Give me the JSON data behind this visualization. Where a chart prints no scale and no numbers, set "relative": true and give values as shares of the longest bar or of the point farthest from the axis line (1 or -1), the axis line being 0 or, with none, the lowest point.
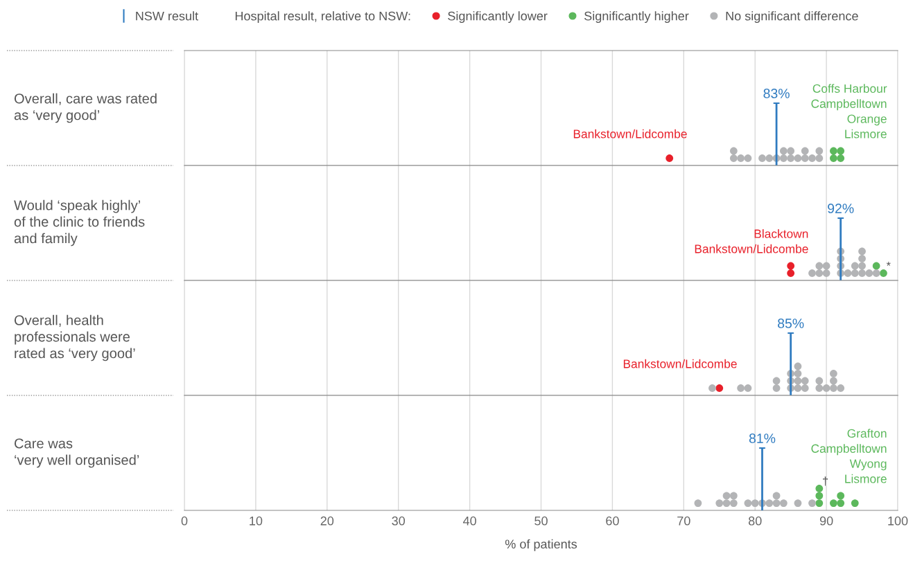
{
  "chart_data": [
    {
      "type": "scatter",
      "relative": true,
      "title": "Overall, care was rated\nas ‘very good’",
      "legend": "top",
      "legend_title": "Hospital result, relative to NSW:",
      "xlim": [
        0,
        100
      ],
      "xticks": [
        0,
        10,
        20,
        30,
        40,
        50,
        60,
        70,
        80,
        90,
        100
      ],
      "grid": "x",
      "tick_labels": false,
      "marker": "circle",
      "series": [
        {
          "name": "Significantly lower",
          "color": "#e8202a",
          "x": [
            68
          ],
          "values": [
            0.5
          ]
        },
        {
          "name": "Significantly higher",
          "color": "#5cb85c",
          "x": [
            91,
            91,
            92,
            92
          ],
          "values": [
            0.5,
            1,
            0.5,
            1
          ]
        },
        {
          "name": "No significant difference",
          "color": "#b3b4b6",
          "x": [
            77,
            77,
            78,
            79,
            81,
            82,
            83,
            84,
            84,
            85,
            85,
            86,
            87,
            87,
            88,
            89,
            89
          ],
          "values": [
            0.5,
            1,
            0.5,
            0.5,
            0.5,
            0.5,
            0.5,
            0.5,
            1,
            0.5,
            1,
            0.5,
            0.5,
            1,
            0.5,
            0.5,
            1
          ]
        }
      ],
      "ref_lines": [
        {
          "axis": "x",
          "value": 83,
          "label": "83%",
          "color": "#2f7bc0"
        }
      ],
      "annotations": [
        "NSW result",
        {
          "text": "Bankstown/Lidcombe",
          "x": 68,
          "y": 0.5
        },
        {
          "text": "Coffs Harbour\nCampbelltown\nOrange\nLismore",
          "x": 92,
          "y": 1
        }
      ]
    },
    {
      "type": "scatter",
      "relative": true,
      "title": "Would ‘speak highly’\nof the clinic to friends\nand family",
      "xlim": [
        0,
        100
      ],
      "xticks": [
        0,
        10,
        20,
        30,
        40,
        50,
        60,
        70,
        80,
        90,
        100
      ],
      "grid": "x",
      "tick_labels": false,
      "marker": "circle",
      "series": [
        {
          "color": "#e8202a",
          "x": [
            85,
            85
          ],
          "values": [
            0.25,
            0.5
          ]
        },
        {
          "color": "#5cb85c",
          "x": [
            97,
            98
          ],
          "values": [
            0.5,
            0.25
          ]
        },
        {
          "color": "#b3b4b6",
          "x": [
            88,
            89,
            89,
            90,
            90,
            92,
            92,
            92,
            92,
            93,
            94,
            94,
            95,
            95,
            95,
            95,
            96,
            97
          ],
          "values": [
            0.25,
            0.25,
            0.5,
            0.25,
            0.5,
            0.25,
            0.5,
            0.75,
            1,
            0.25,
            0.25,
            0.5,
            0.25,
            0.5,
            0.75,
            1,
            0.25,
            0.25
          ]
        }
      ],
      "ref_lines": [
        {
          "axis": "x",
          "value": 92,
          "label": "92%",
          "color": "#2f7bc0"
        }
      ],
      "annotations": [
        {
          "text": "Blacktown\nBankstown/Lidcombe",
          "x": 85,
          "y": 0.5
        },
        {
          "text": "*",
          "x": 98,
          "y": 0.25
        }
      ]
    },
    {
      "type": "scatter",
      "relative": true,
      "title": "Overall, health\nprofessionals were\nrated as ‘very good’",
      "xlim": [
        0,
        100
      ],
      "xticks": [
        0,
        10,
        20,
        30,
        40,
        50,
        60,
        70,
        80,
        90,
        100
      ],
      "grid": "x",
      "tick_labels": false,
      "marker": "circle",
      "series": [
        {
          "color": "#e8202a",
          "x": [
            75
          ],
          "values": [
            0.25
          ]
        },
        {
          "color": "#b3b4b6",
          "x": [
            74,
            78,
            79,
            83,
            83,
            85,
            85,
            85,
            86,
            86,
            86,
            86,
            87,
            87,
            89,
            89,
            90,
            91,
            91,
            91,
            92
          ],
          "values": [
            0.25,
            0.25,
            0.25,
            0.25,
            0.5,
            0.25,
            0.5,
            0.75,
            0.25,
            0.5,
            0.75,
            1,
            0.25,
            0.5,
            0.25,
            0.5,
            0.25,
            0.25,
            0.5,
            0.75,
            0.25
          ]
        }
      ],
      "ref_lines": [
        {
          "axis": "x",
          "value": 85,
          "label": "85%",
          "color": "#2f7bc0"
        }
      ],
      "annotations": [
        {
          "text": "Bankstown/Lidcombe",
          "x": 75,
          "y": 0.25
        }
      ]
    },
    {
      "type": "scatter",
      "relative": true,
      "title": "Care was\n‘very well organised’",
      "xlabel": "% of patients",
      "xlim": [
        0,
        100
      ],
      "xticks": [
        0,
        10,
        20,
        30,
        40,
        50,
        60,
        70,
        80,
        90,
        100
      ],
      "grid": "x",
      "tick_labels": "x",
      "marker": "circle",
      "series": [
        {
          "color": "#5cb85c",
          "x": [
            89,
            89,
            89,
            91,
            92,
            92,
            94
          ],
          "values": [
            0.33,
            0.67,
            1,
            0.33,
            0.33,
            0.67,
            0.33
          ]
        },
        {
          "color": "#b3b4b6",
          "x": [
            72,
            75,
            76,
            76,
            77,
            77,
            79,
            80,
            81,
            82,
            83,
            83,
            84,
            86,
            88
          ],
          "values": [
            0.33,
            0.33,
            0.33,
            0.67,
            0.33,
            0.67,
            0.33,
            0.33,
            0.33,
            0.33,
            0.33,
            0.67,
            0.33,
            0.33,
            0.33
          ]
        }
      ],
      "ref_lines": [
        {
          "axis": "x",
          "value": 81,
          "label": "81%",
          "color": "#2f7bc0"
        }
      ],
      "annotations": [
        {
          "text": "Grafton\nCampbelltown\nWyong\nLismore",
          "x": 92,
          "y": 0.67
        },
        {
          "text": "†",
          "x": 89,
          "y": 1
        }
      ]
    }
  ]
}
